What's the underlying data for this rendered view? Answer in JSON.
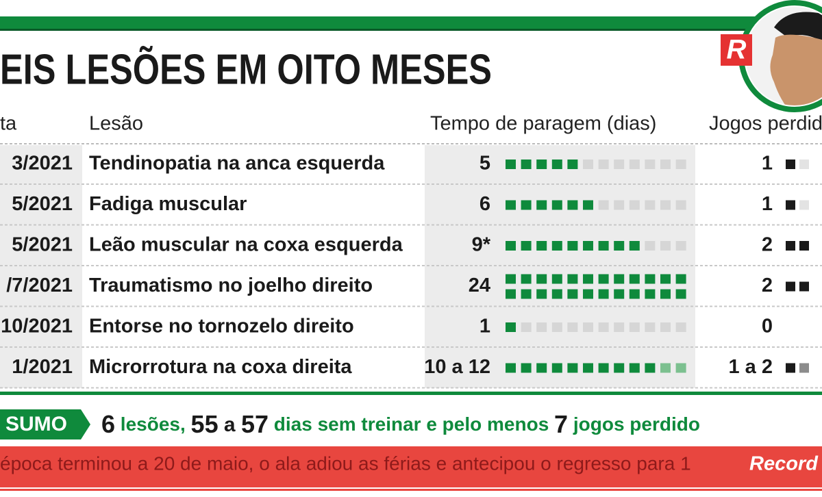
{
  "header": {
    "title": "EIS LESÕES EM OITO MESES",
    "logo": "R"
  },
  "table": {
    "columns": [
      "ta",
      "Lesão",
      "Tempo de paragem (dias)",
      "Jogos perdid"
    ],
    "rows": [
      {
        "date": "3/2021",
        "injury": "Tendinopatia na anca esquerda",
        "days_label": "5",
        "days": [
          5
        ],
        "games_label": "1",
        "games": [
          1
        ]
      },
      {
        "date": "5/2021",
        "injury": "Fadiga muscular",
        "days_label": "6",
        "days": [
          6
        ],
        "games_label": "1",
        "games": [
          1
        ]
      },
      {
        "date": "5/2021",
        "injury": "Leão muscular na coxa esquerda",
        "days_label": "9*",
        "days": [
          9
        ],
        "games_label": "2",
        "games": [
          2
        ]
      },
      {
        "date": "/7/2021",
        "injury": "Traumatismo no joelho direito",
        "days_label": "24",
        "days": [
          24
        ],
        "games_label": "2",
        "games": [
          2
        ]
      },
      {
        "date": "10/2021",
        "injury": "Entorse no tornozelo direito",
        "days_label": "1",
        "days": [
          1
        ],
        "games_label": "0",
        "games": [
          0
        ]
      },
      {
        "date": "1/2021",
        "injury": "Microrrotura na coxa direita",
        "days_label": "10 a 12",
        "days": [
          10,
          12
        ],
        "games_label": "1 a 2",
        "games": [
          1,
          2
        ]
      }
    ]
  },
  "summary": {
    "label": "SUMO",
    "segments": [
      {
        "text": "6",
        "style": "num"
      },
      {
        "text": " lesões, ",
        "style": "green"
      },
      {
        "text": "55",
        "style": "num"
      },
      {
        "text": " a ",
        "style": "plain"
      },
      {
        "text": "57",
        "style": "num"
      },
      {
        "text": " dias sem treinar e pelo menos ",
        "style": "green"
      },
      {
        "text": "7",
        "style": "num"
      },
      {
        "text": " jogos perdido",
        "style": "green"
      }
    ]
  },
  "footer": {
    "text": "época terminou a 20 de maio, o ala adiou as férias e antecipou o regresso para 1",
    "brand": "Record"
  }
}
